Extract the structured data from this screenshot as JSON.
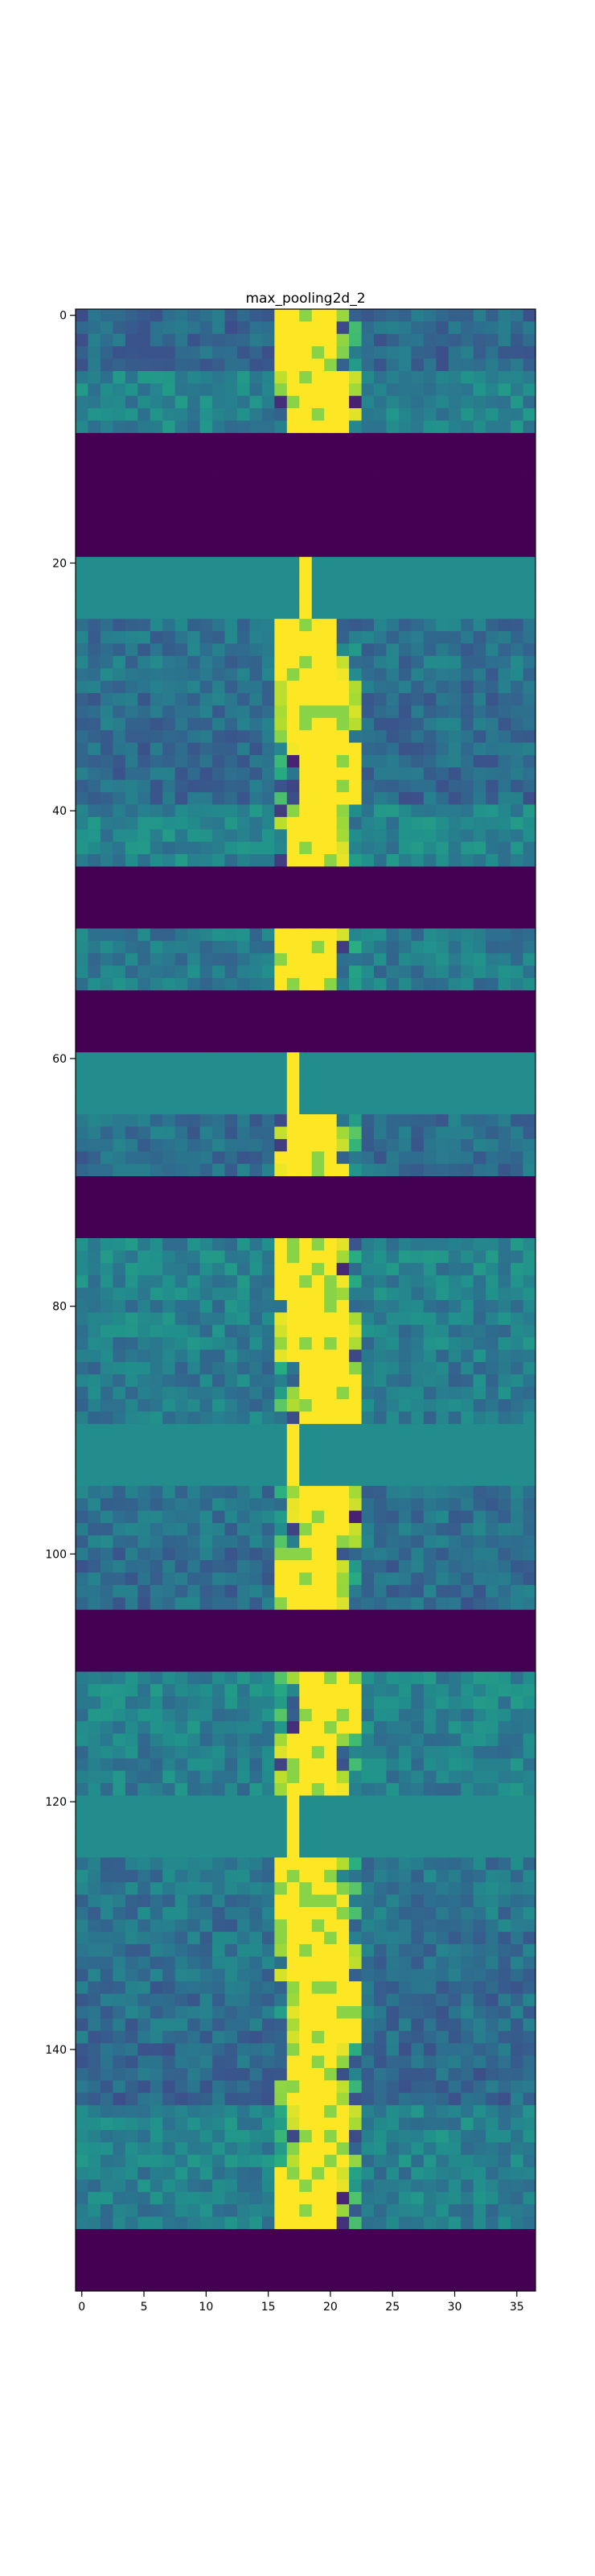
{
  "chart_data": {
    "type": "heatmap",
    "title": "max_pooling2d_2",
    "xlabel": "",
    "ylabel": "",
    "xlim": [
      -0.5,
      36.5
    ],
    "ylim": [
      159.5,
      -0.5
    ],
    "n_cols": 37,
    "n_rows": 160,
    "colormap": "viridis",
    "grid": false,
    "x_ticks": [
      0,
      5,
      10,
      15,
      20,
      25,
      30,
      35
    ],
    "y_ticks": [
      0,
      20,
      40,
      60,
      80,
      100,
      120,
      140
    ],
    "zero_row_bands": [
      [
        10,
        19
      ],
      [
        45,
        49
      ],
      [
        55,
        59
      ],
      [
        70,
        74
      ],
      [
        105,
        109
      ],
      [
        155,
        159
      ]
    ],
    "flat_row_bands": [
      [
        20,
        24
      ],
      [
        60,
        64
      ],
      [
        90,
        94
      ],
      [
        120,
        124
      ]
    ],
    "bright_col_range": [
      16,
      22
    ],
    "colors": {
      "low": "#440154",
      "mid": "#21918c",
      "high": "#fde725",
      "frame": "#000000"
    }
  }
}
